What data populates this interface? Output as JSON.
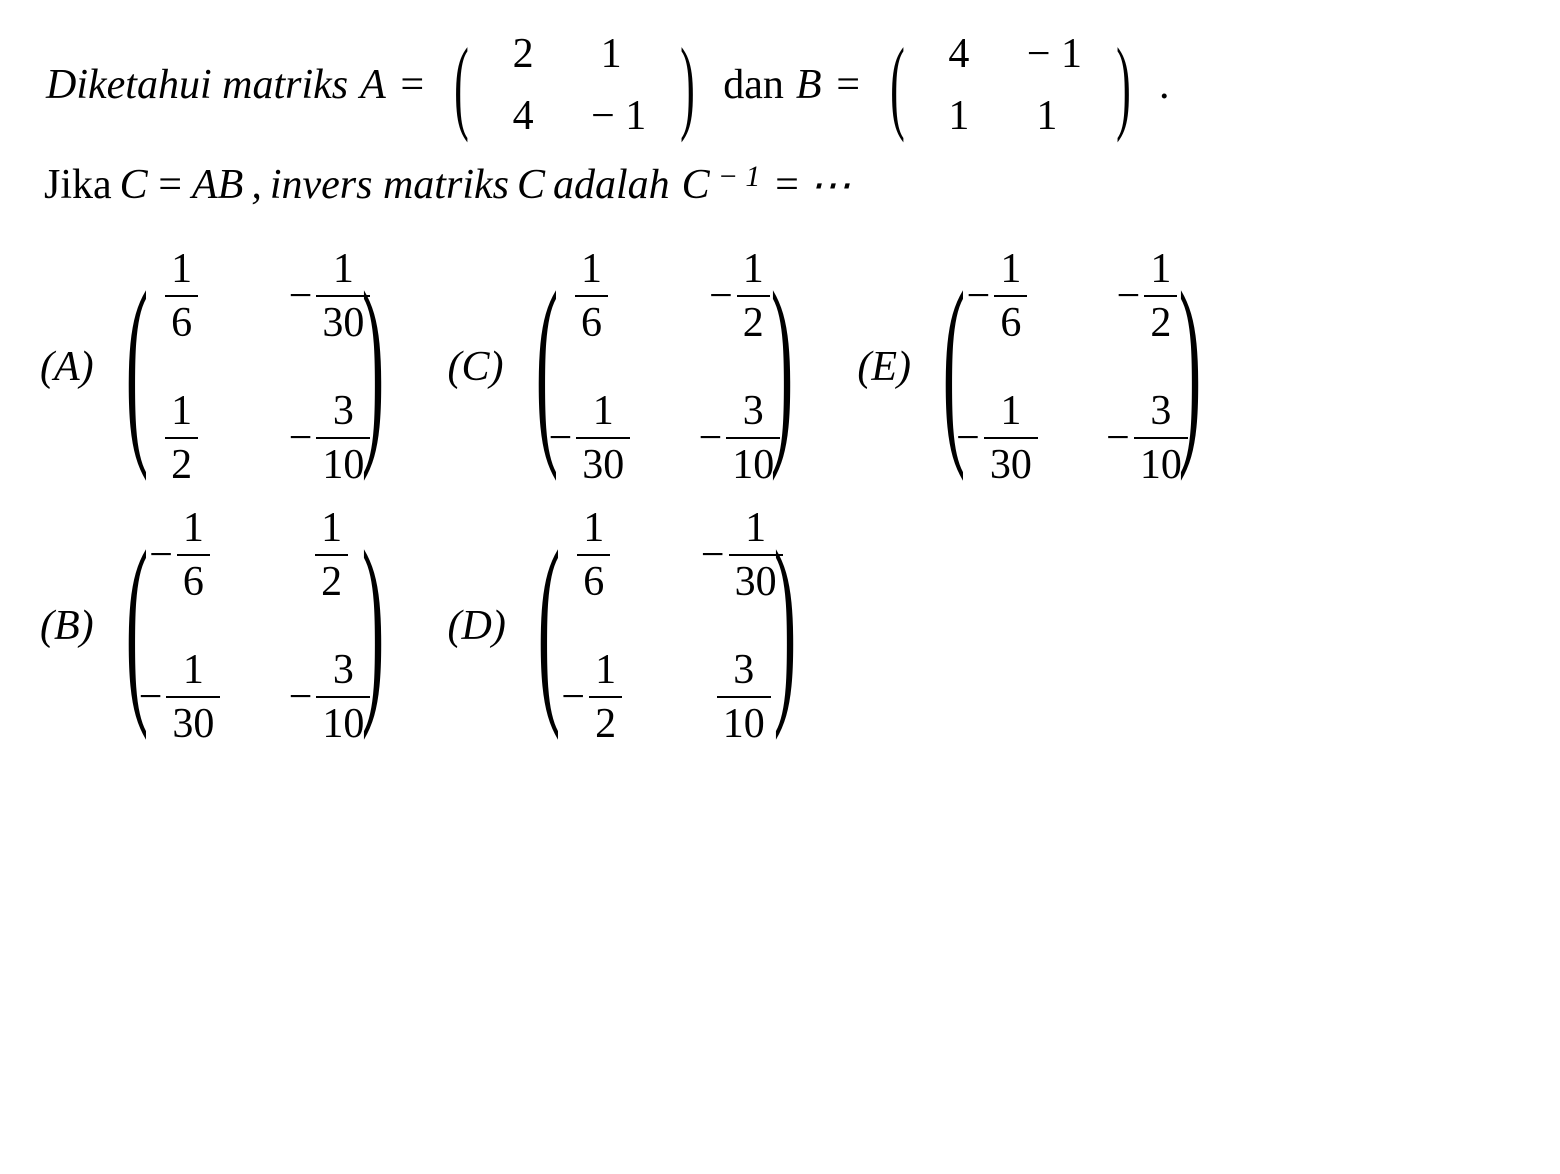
{
  "problem": {
    "text_prefix": "Diketahui matriks",
    "var_A": "A",
    "equals": "=",
    "matrix_A": [
      [
        "2",
        "1"
      ],
      [
        "4",
        "− 1"
      ]
    ],
    "text_dan": "dan",
    "var_B": "B",
    "matrix_B": [
      [
        "4",
        "− 1"
      ],
      [
        "1",
        "1"
      ]
    ],
    "period": ".",
    "line2_prefix": "Jika",
    "var_C": "C",
    "var_AB": "AB",
    "text_comma": ",",
    "text_invers": "invers matriks",
    "text_adalah": "adalah",
    "var_C2": "C",
    "c_exp": "− 1",
    "ellipsis": "⋯"
  },
  "answers": {
    "A": {
      "label": "(A)",
      "cells": [
        [
          {
            "sign": "",
            "num": "1",
            "den": "6"
          },
          {
            "sign": "−",
            "num": "1",
            "den": "30"
          }
        ],
        [
          {
            "sign": "",
            "num": "1",
            "den": "2"
          },
          {
            "sign": "−",
            "num": "3",
            "den": "10"
          }
        ]
      ]
    },
    "B": {
      "label": "(B)",
      "cells": [
        [
          {
            "sign": "−",
            "num": "1",
            "den": "6"
          },
          {
            "sign": "",
            "num": "1",
            "den": "2"
          }
        ],
        [
          {
            "sign": "−",
            "num": "1",
            "den": "30"
          },
          {
            "sign": "−",
            "num": "3",
            "den": "10"
          }
        ]
      ]
    },
    "C": {
      "label": "(C)",
      "cells": [
        [
          {
            "sign": "",
            "num": "1",
            "den": "6"
          },
          {
            "sign": "−",
            "num": "1",
            "den": "2"
          }
        ],
        [
          {
            "sign": "−",
            "num": "1",
            "den": "30"
          },
          {
            "sign": "−",
            "num": "3",
            "den": "10"
          }
        ]
      ]
    },
    "D": {
      "label": "(D)",
      "cells": [
        [
          {
            "sign": "",
            "num": "1",
            "den": "6"
          },
          {
            "sign": "−",
            "num": "1",
            "den": "30"
          }
        ],
        [
          {
            "sign": "−",
            "num": "1",
            "den": "2"
          },
          {
            "sign": "",
            "num": "3",
            "den": "10"
          }
        ]
      ]
    },
    "E": {
      "label": "(E)",
      "cells": [
        [
          {
            "sign": "−",
            "num": "1",
            "den": "6"
          },
          {
            "sign": "−",
            "num": "1",
            "den": "2"
          }
        ],
        [
          {
            "sign": "−",
            "num": "1",
            "den": "30"
          },
          {
            "sign": "−",
            "num": "3",
            "den": "10"
          }
        ]
      ]
    }
  },
  "styling": {
    "font_family": "Times New Roman",
    "text_fontsize_pt": 32,
    "text_color": "#000000",
    "background_color": "#ffffff",
    "layout": "problem statement on 2 lines, then 5 answer options in a 2x3-ish grid (row1: A C E, row2: B D)"
  }
}
